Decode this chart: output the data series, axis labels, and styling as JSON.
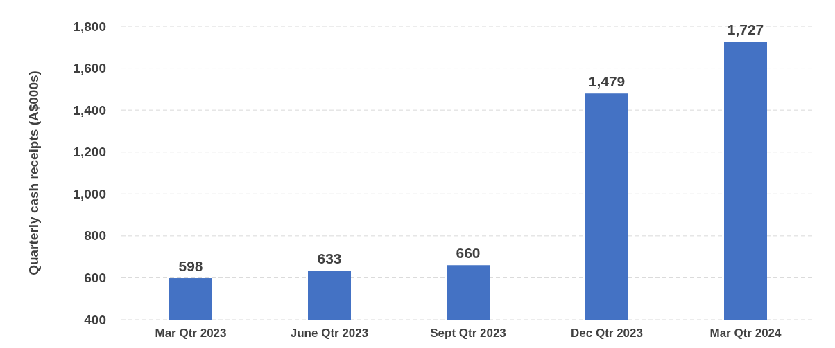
{
  "chart_data": {
    "type": "bar",
    "ylabel": "Quarterly cash receipts (A$000s)",
    "categories": [
      "Mar Qtr 2023",
      "June Qtr 2023",
      "Sept Qtr 2023",
      "Dec Qtr 2023",
      "Mar Qtr 2024"
    ],
    "values": [
      598,
      633,
      660,
      1479,
      1727
    ],
    "color": "#4472c4",
    "value_labels": [
      "598",
      "633",
      "660",
      "1,479",
      "1,727"
    ],
    "ylim": [
      400,
      1800
    ],
    "yticks": [
      {
        "value": 400,
        "label": "400"
      },
      {
        "value": 600,
        "label": "600"
      },
      {
        "value": 800,
        "label": "800"
      },
      {
        "value": 1000,
        "label": "1,000"
      },
      {
        "value": 1200,
        "label": "1,200"
      },
      {
        "value": 1400,
        "label": "1,400"
      },
      {
        "value": 1600,
        "label": "1,600"
      },
      {
        "value": 1800,
        "label": "1,800"
      }
    ],
    "grid": "y"
  }
}
